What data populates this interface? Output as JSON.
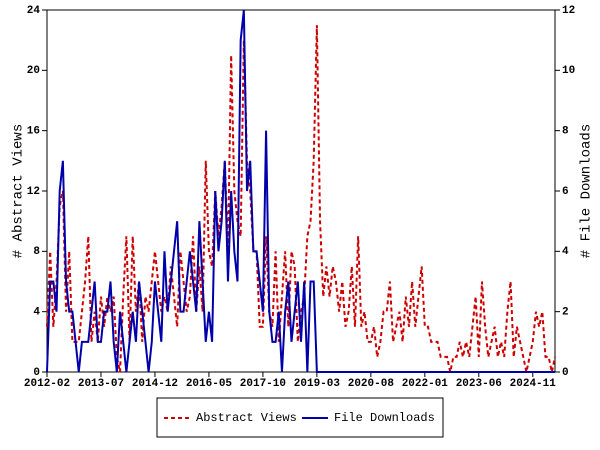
{
  "chart_data": {
    "type": "line",
    "y_label": "# Abstract Views",
    "y2_label": "# File Downloads",
    "categories": [
      "2012-02",
      null,
      null,
      null,
      null,
      null,
      null,
      null,
      null,
      null,
      null,
      null,
      null,
      null,
      null,
      null,
      null,
      "2013-07",
      null,
      null,
      null,
      null,
      null,
      null,
      null,
      null,
      null,
      null,
      null,
      null,
      null,
      null,
      null,
      null,
      "2014-12",
      null,
      null,
      null,
      null,
      null,
      null,
      null,
      null,
      null,
      null,
      null,
      null,
      null,
      null,
      null,
      null,
      "2016-05",
      null,
      null,
      null,
      null,
      null,
      null,
      null,
      null,
      null,
      null,
      null,
      null,
      null,
      null,
      null,
      null,
      "2017-10",
      null,
      null,
      null,
      null,
      null,
      null,
      null,
      null,
      null,
      null,
      null,
      null,
      null,
      null,
      null,
      null,
      "2019-03",
      null,
      null,
      null,
      null,
      null,
      null,
      null,
      null,
      null,
      null,
      null,
      null,
      null,
      null,
      null,
      null,
      "2020-08",
      null,
      null,
      null,
      null,
      null,
      null,
      null,
      null,
      null,
      null,
      null,
      null,
      null,
      null,
      null,
      null,
      "2022-01",
      null,
      null,
      null,
      null,
      null,
      null,
      null,
      null,
      null,
      null,
      null,
      null,
      null,
      null,
      null,
      null,
      "2023-06",
      null,
      null,
      null,
      null,
      null,
      null,
      null,
      null,
      null,
      null,
      null,
      null,
      null,
      null,
      null,
      null,
      "2024-11",
      null,
      null,
      null,
      null,
      null,
      null,
      null
    ],
    "series": [
      {
        "name": "Abstract Views",
        "color": "#cc0000",
        "line_style": "dashed",
        "axis": "y",
        "values": [
          3,
          8,
          3,
          6,
          11,
          12,
          4,
          8,
          2,
          2,
          2,
          4,
          6,
          9,
          2,
          4,
          2,
          5,
          3,
          5,
          4,
          5,
          1,
          0,
          5,
          9,
          2,
          9,
          4,
          6,
          2,
          5,
          4,
          6,
          8,
          6,
          4,
          5,
          4,
          7,
          5,
          3,
          8,
          6,
          4,
          5,
          9,
          4,
          7,
          4,
          14,
          8,
          7,
          12,
          9,
          11,
          14,
          8,
          21,
          12,
          10,
          9,
          22,
          14,
          12,
          8,
          8,
          3,
          3,
          9,
          4,
          3,
          8,
          2,
          5,
          8,
          3,
          8,
          7,
          2,
          4,
          5,
          9,
          10,
          14,
          23,
          10,
          5,
          7,
          5,
          7,
          6,
          4,
          6,
          3,
          4,
          7,
          3,
          9,
          3,
          4,
          2,
          2,
          3,
          1,
          2,
          4,
          4,
          6,
          2,
          3,
          4,
          2,
          5,
          3,
          6,
          3,
          5,
          7,
          3,
          3,
          2,
          2,
          2,
          1,
          1,
          1,
          0,
          1,
          1,
          2,
          1,
          2,
          1,
          3,
          5,
          1,
          6,
          3,
          1,
          2,
          3,
          1,
          2,
          1,
          4,
          6,
          1,
          3,
          2,
          1,
          0,
          1,
          2,
          4,
          3,
          4,
          1,
          1,
          0,
          1
        ]
      },
      {
        "name": "File Downloads",
        "color": "#0000aa",
        "line_style": "solid",
        "axis": "y2",
        "values": [
          0,
          3,
          3,
          2,
          6,
          7,
          3,
          2,
          2,
          1,
          0,
          1,
          1,
          1,
          2,
          3,
          1,
          1,
          2,
          2,
          3,
          1,
          0,
          2,
          1,
          0,
          1,
          2,
          1,
          3,
          2,
          1,
          0,
          1,
          3,
          2,
          1,
          4,
          2,
          3,
          4,
          5,
          2,
          2,
          3,
          4,
          3,
          2,
          5,
          3,
          1,
          2,
          1,
          6,
          4,
          5,
          7,
          3,
          6,
          4,
          3,
          11,
          12,
          6,
          7,
          4,
          4,
          3,
          2,
          8,
          2,
          1,
          1,
          2,
          0,
          2,
          3,
          1,
          2,
          3,
          1,
          3,
          0,
          3,
          3,
          0,
          0,
          0,
          0,
          0,
          0,
          0,
          0,
          0,
          0,
          0,
          0,
          0,
          0,
          0,
          0,
          0,
          0,
          0,
          0,
          0,
          0,
          0,
          0,
          0,
          0,
          0,
          0,
          0,
          0,
          0,
          0,
          0,
          0,
          0,
          0,
          0,
          0,
          0,
          0,
          0,
          0,
          0,
          0,
          0,
          0,
          0,
          0,
          0,
          0,
          0,
          0,
          0,
          0,
          0,
          0,
          0,
          0,
          0,
          0,
          0,
          0,
          0,
          0,
          0,
          0,
          0,
          0,
          0,
          0,
          0,
          0,
          0,
          0,
          0,
          0
        ]
      }
    ],
    "ylim": [
      0,
      24
    ],
    "yticks": [
      0,
      4,
      8,
      12,
      16,
      20,
      24
    ],
    "y2lim": [
      0,
      12
    ],
    "y2ticks": [
      0,
      2,
      4,
      6,
      8,
      10,
      12
    ],
    "grid": false,
    "legend": "bottom"
  }
}
